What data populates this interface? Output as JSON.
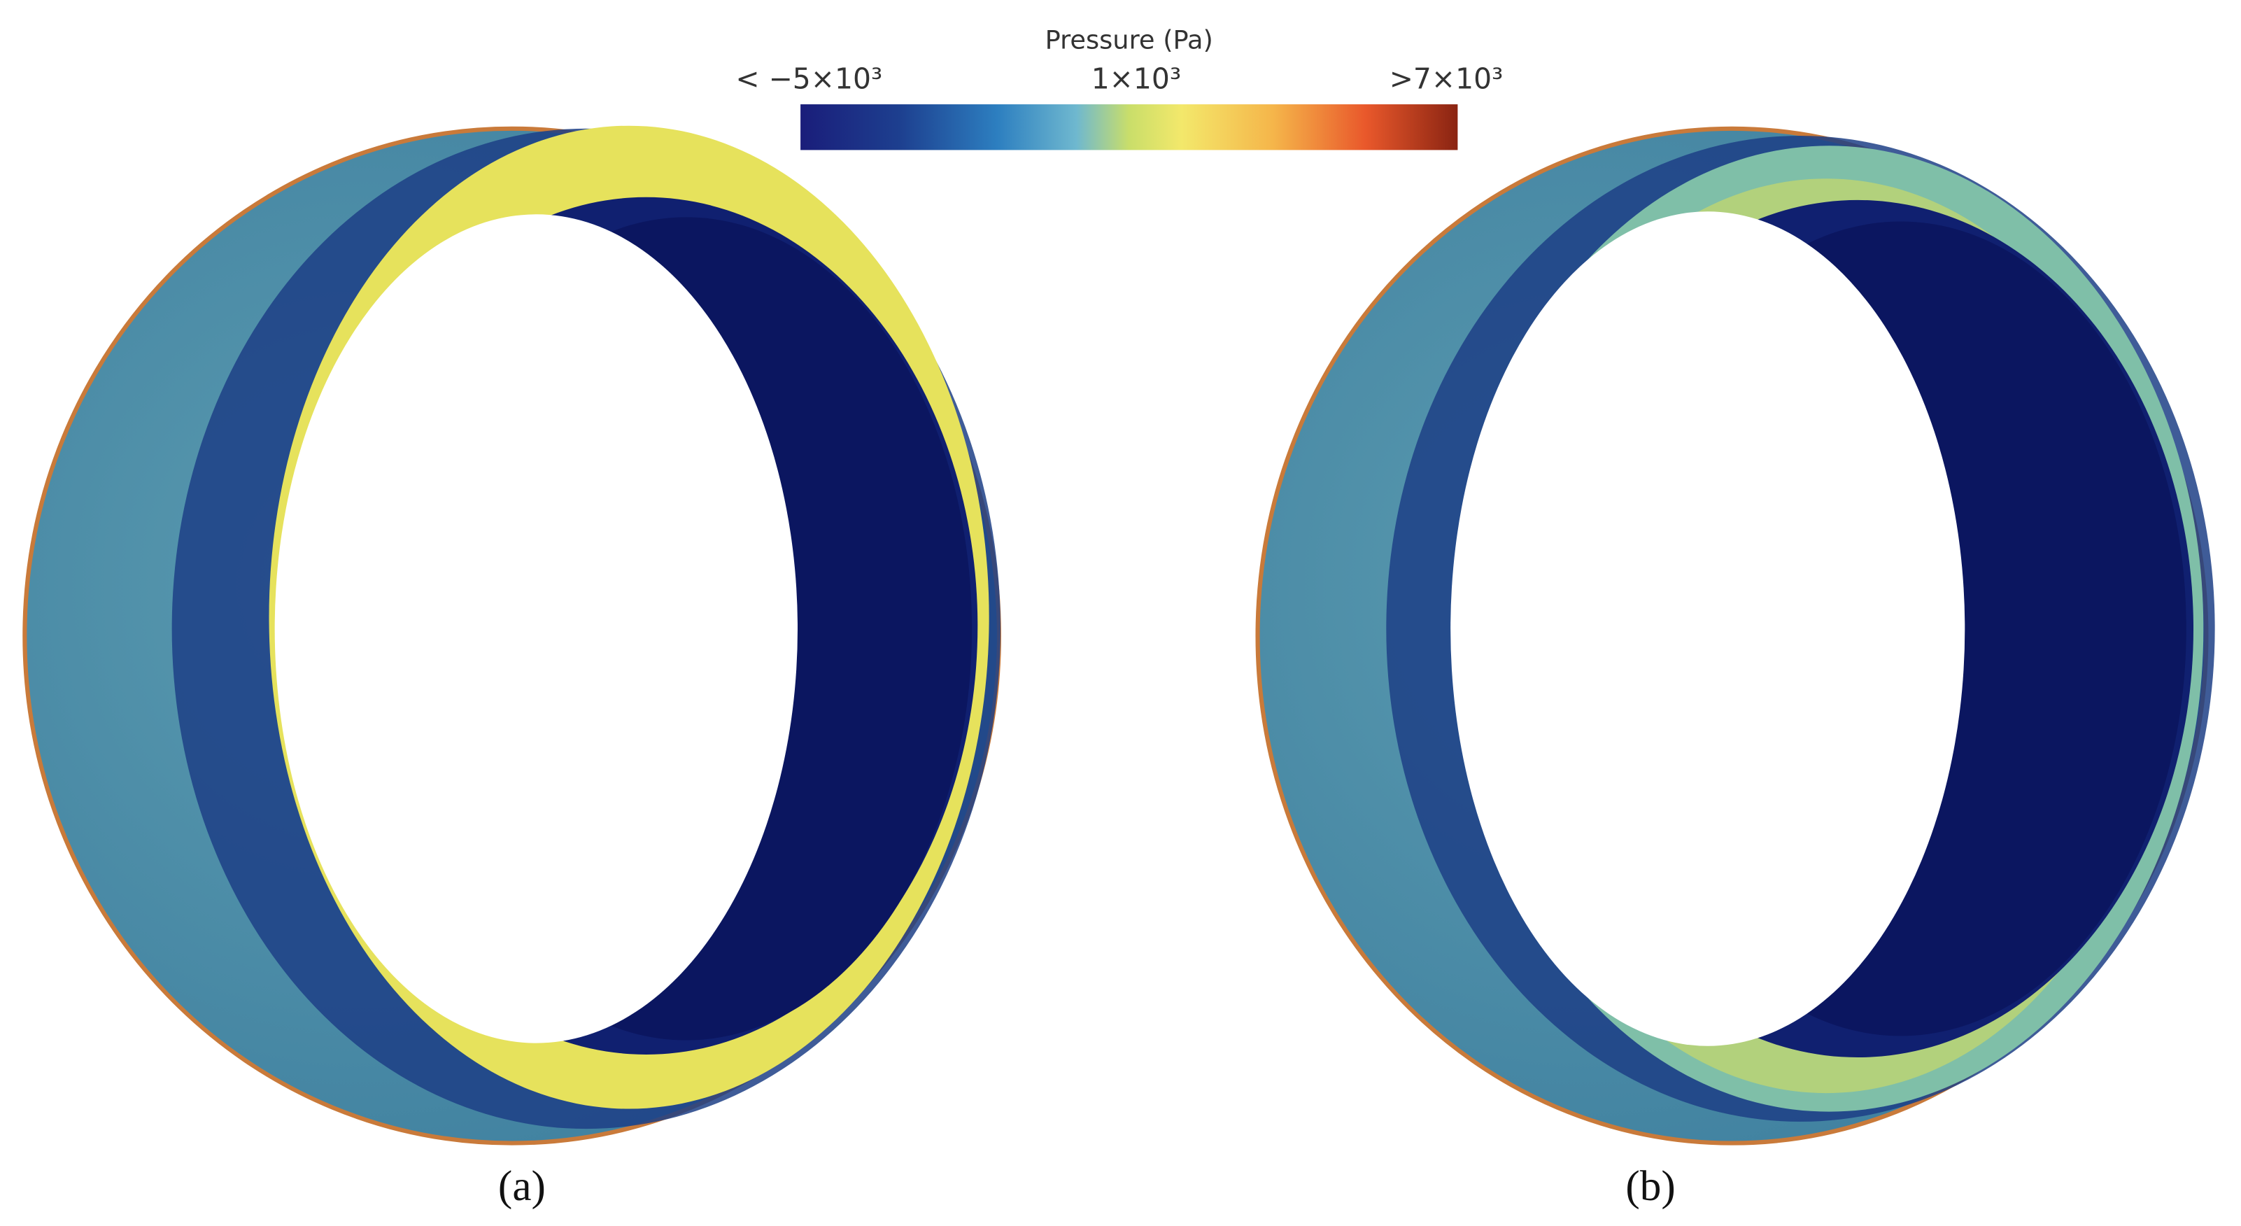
{
  "colorbar": {
    "title": "Pressure (Pa)",
    "min_label": "< −5×10³",
    "mid_label": "1×10³",
    "max_label": ">7×10³"
  },
  "panels": [
    {
      "caption": "(a)"
    },
    {
      "caption": "(b)"
    }
  ]
}
